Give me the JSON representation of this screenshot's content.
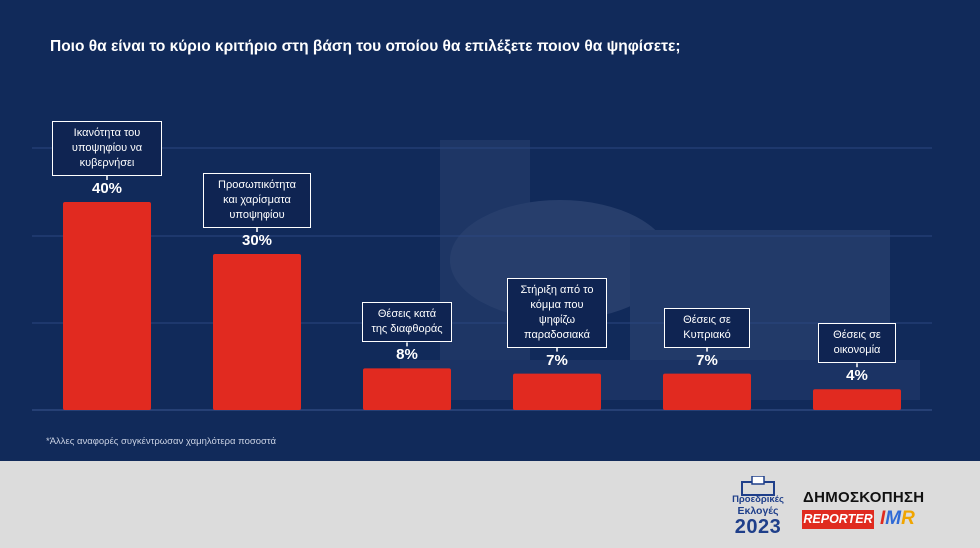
{
  "title": "Ποιο θα είναι το κύριο κριτήριο στη βάση του οποίου θα επιλέξετε ποιον θα ψηφίσετε;",
  "footnote": "*Άλλες αναφορές συγκέντρωσαν χαμηλότερα ποσοστά",
  "colors": {
    "background": "#112a5a",
    "bar": "#e12a20",
    "footer": "#dcdcdc"
  },
  "chart_data": {
    "type": "bar",
    "categories": [
      "Ικανότητα του υποψηφίου να κυβερνήσει",
      "Προσωπικότητα και χαρίσματα υποψηφίου",
      "Θέσεις κατά της διαφθοράς",
      "Στήριξη από το κόμμα που ψηφίζω παραδοσιακά",
      "Θέσεις σε Κυπριακό",
      "Θέσεις σε οικονομία"
    ],
    "category_lines": [
      [
        "Ικανότητα του",
        "υποψηφίου να",
        "κυβερνήσει"
      ],
      [
        "Προσωπικότητα",
        "και χαρίσματα",
        "υποψηφίου"
      ],
      [
        "Θέσεις κατά",
        "της διαφθοράς"
      ],
      [
        "Στήριξη από το",
        "κόμμα που",
        "ψηφίζω",
        "παραδοσιακά"
      ],
      [
        "Θέσεις σε",
        "Κυπριακό"
      ],
      [
        "Θέσεις σε",
        "οικονομία"
      ]
    ],
    "values": [
      40,
      30,
      8,
      7,
      7,
      4
    ],
    "value_labels": [
      "40%",
      "30%",
      "8%",
      "7%",
      "7%",
      "4%"
    ],
    "ylim": [
      0,
      45
    ],
    "grid": true
  },
  "footer": {
    "badge": {
      "line1": "Προεδρικές",
      "line2": "Εκλογές",
      "line3": "2023"
    },
    "survey_title": "ΔΗΜΟΣΚΟΠΗΣΗ",
    "reporter": "REPORTER",
    "imr": {
      "i": "I",
      "m": "M",
      "r": "R"
    }
  }
}
